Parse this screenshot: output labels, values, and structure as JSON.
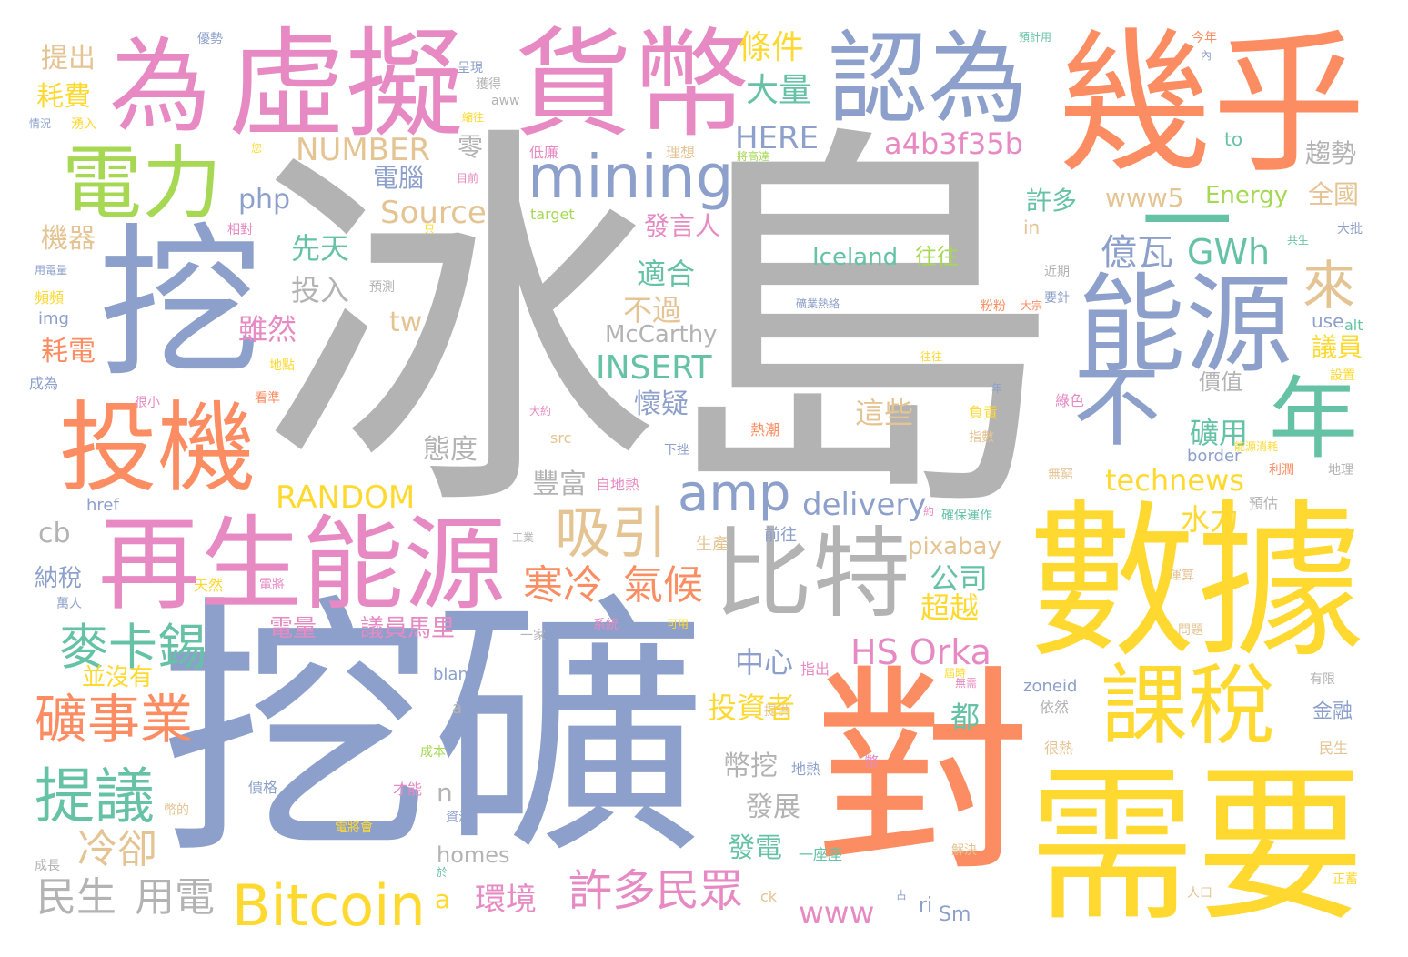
{
  "palette": {
    "gray": "#b3b3b3",
    "blue": "#8da0cb",
    "orange": "#fc8d62",
    "pink": "#e78ac3",
    "yellow": "#ffd92f",
    "green": "#66c2a5",
    "lime": "#a6d854",
    "tan": "#e5c494"
  },
  "words": [
    {
      "text": "冰島",
      "color": "gray"
    },
    {
      "text": "挖礦",
      "color": "blue"
    },
    {
      "text": "數據",
      "color": "yellow"
    },
    {
      "text": "需要",
      "color": "yellow"
    },
    {
      "text": "對",
      "color": "orange"
    },
    {
      "text": "幾乎",
      "color": "orange"
    },
    {
      "text": "挖",
      "color": "blue"
    },
    {
      "text": "貨幣",
      "color": "pink"
    },
    {
      "text": "虛擬",
      "color": "pink"
    },
    {
      "text": "為",
      "color": "pink"
    },
    {
      "text": "認為",
      "color": "blue"
    },
    {
      "text": "再生能源",
      "color": "pink"
    },
    {
      "text": "能源",
      "color": "blue"
    },
    {
      "text": "比特",
      "color": "gray"
    },
    {
      "text": "投機",
      "color": "orange"
    },
    {
      "text": "年",
      "color": "green"
    },
    {
      "text": "一",
      "color": "green"
    },
    {
      "text": "不",
      "color": "blue"
    },
    {
      "text": "課稅",
      "color": "yellow"
    },
    {
      "text": "電力",
      "color": "lime"
    },
    {
      "text": "mining",
      "color": "blue"
    },
    {
      "text": "Bitcoin",
      "color": "yellow"
    },
    {
      "text": "提議",
      "color": "green"
    },
    {
      "text": "麥卡錫",
      "color": "green"
    },
    {
      "text": "礦事業",
      "color": "orange"
    },
    {
      "text": "吸引",
      "color": "tan"
    },
    {
      "text": "amp",
      "color": "blue"
    },
    {
      "text": "來",
      "color": "tan"
    },
    {
      "text": "許多民眾",
      "color": "pink"
    },
    {
      "text": "寒冷",
      "color": "orange"
    },
    {
      "text": "氣候",
      "color": "orange"
    },
    {
      "text": "HS Orka",
      "color": "pink"
    },
    {
      "text": "億瓦",
      "color": "blue"
    },
    {
      "text": "GWh",
      "color": "green"
    },
    {
      "text": "a4b3f35b",
      "color": "pink"
    },
    {
      "text": "條件",
      "color": "yellow"
    },
    {
      "text": "大量",
      "color": "green"
    },
    {
      "text": "HERE",
      "color": "blue"
    },
    {
      "text": "NUMBER",
      "color": "tan"
    },
    {
      "text": "Source",
      "color": "tan"
    },
    {
      "text": "RANDOM",
      "color": "yellow"
    },
    {
      "text": "INSERT",
      "color": "green"
    },
    {
      "text": "delivery",
      "color": "blue"
    },
    {
      "text": "technews",
      "color": "yellow"
    },
    {
      "text": "冷卻",
      "color": "tan"
    },
    {
      "text": "民生",
      "color": "gray"
    },
    {
      "text": "用電",
      "color": "gray"
    },
    {
      "text": "環境",
      "color": "pink"
    },
    {
      "text": "www",
      "color": "pink"
    },
    {
      "text": "www5",
      "color": "tan"
    },
    {
      "text": "Energy",
      "color": "lime"
    },
    {
      "text": "Iceland",
      "color": "green"
    },
    {
      "text": "往往",
      "color": "lime"
    },
    {
      "text": "McCarthy",
      "color": "gray"
    },
    {
      "text": "先天",
      "color": "green"
    },
    {
      "text": "投入",
      "color": "gray"
    },
    {
      "text": "雖然",
      "color": "pink"
    },
    {
      "text": "不過",
      "color": "tan"
    },
    {
      "text": "適合",
      "color": "green"
    },
    {
      "text": "懷疑",
      "color": "blue"
    },
    {
      "text": "態度",
      "color": "gray"
    },
    {
      "text": "豐富",
      "color": "gray"
    },
    {
      "text": "這些",
      "color": "tan"
    },
    {
      "text": "礦用",
      "color": "green"
    },
    {
      "text": "水力",
      "color": "yellow"
    },
    {
      "text": "公司",
      "color": "green"
    },
    {
      "text": "超越",
      "color": "yellow"
    },
    {
      "text": "pixabay",
      "color": "tan"
    },
    {
      "text": "中心",
      "color": "blue"
    },
    {
      "text": "投資者",
      "color": "yellow"
    },
    {
      "text": "都",
      "color": "green"
    },
    {
      "text": "幣挖",
      "color": "gray"
    },
    {
      "text": "發展",
      "color": "gray"
    },
    {
      "text": "發電",
      "color": "green"
    },
    {
      "text": "電量",
      "color": "pink"
    },
    {
      "text": "議員馬里",
      "color": "pink"
    },
    {
      "text": "並沒有",
      "color": "yellow"
    },
    {
      "text": "納稅",
      "color": "blue"
    },
    {
      "text": "tw",
      "color": "tan"
    },
    {
      "text": "php",
      "color": "blue"
    },
    {
      "text": "電腦",
      "color": "blue"
    },
    {
      "text": "零",
      "color": "gray"
    },
    {
      "text": "許多",
      "color": "green"
    },
    {
      "text": "全國",
      "color": "tan"
    },
    {
      "text": "趨勢",
      "color": "gray"
    },
    {
      "text": "議員",
      "color": "yellow"
    },
    {
      "text": "價值",
      "color": "gray"
    },
    {
      "text": "提出",
      "color": "tan"
    },
    {
      "text": "耗費",
      "color": "yellow"
    },
    {
      "text": "機器",
      "color": "tan"
    },
    {
      "text": "耗電",
      "color": "orange"
    },
    {
      "text": "cb",
      "color": "gray"
    },
    {
      "text": "homes",
      "color": "gray"
    },
    {
      "text": "n",
      "color": "gray"
    },
    {
      "text": "a",
      "color": "yellow"
    },
    {
      "text": "to",
      "color": "green"
    },
    {
      "text": "use",
      "color": "blue"
    },
    {
      "text": "in",
      "color": "tan"
    },
    {
      "text": "href",
      "color": "blue"
    },
    {
      "text": "src",
      "color": "tan"
    },
    {
      "text": "target",
      "color": "lime"
    },
    {
      "text": "border",
      "color": "blue"
    },
    {
      "text": "blank",
      "color": "blue"
    },
    {
      "text": "zoneid",
      "color": "blue"
    },
    {
      "text": "img",
      "color": "blue"
    },
    {
      "text": "alt",
      "color": "green"
    },
    {
      "text": "aww",
      "color": "gray"
    },
    {
      "text": "ri",
      "color": "blue"
    },
    {
      "text": "Sm",
      "color": "blue"
    },
    {
      "text": "ck",
      "color": "tan"
    },
    {
      "text": "á",
      "color": "gray"
    },
    {
      "text": "發言人",
      "color": "pink"
    },
    {
      "text": "低廉",
      "color": "pink"
    },
    {
      "text": "理想",
      "color": "tan"
    },
    {
      "text": "生產",
      "color": "tan"
    },
    {
      "text": "前往",
      "color": "blue"
    },
    {
      "text": "指出",
      "color": "pink"
    },
    {
      "text": "熱潮",
      "color": "orange"
    },
    {
      "text": "負責",
      "color": "yellow"
    },
    {
      "text": "綠色",
      "color": "pink"
    },
    {
      "text": "預估",
      "color": "gray"
    },
    {
      "text": "運算",
      "color": "tan"
    },
    {
      "text": "依然",
      "color": "gray"
    },
    {
      "text": "很熱",
      "color": "tan"
    },
    {
      "text": "金融",
      "color": "blue"
    },
    {
      "text": "民生",
      "color": "tan"
    },
    {
      "text": "正蓄",
      "color": "yellow"
    },
    {
      "text": "人口",
      "color": "tan"
    },
    {
      "text": "解決",
      "color": "tan"
    },
    {
      "text": "一座座",
      "color": "green"
    },
    {
      "text": "資源",
      "color": "blue"
    },
    {
      "text": "才能",
      "color": "pink"
    },
    {
      "text": "地熱",
      "color": "blue"
    },
    {
      "text": "價格",
      "color": "blue"
    },
    {
      "text": "成本",
      "color": "lime"
    },
    {
      "text": "電將會",
      "color": "yellow"
    },
    {
      "text": "成長",
      "color": "gray"
    },
    {
      "text": "萬人",
      "color": "blue"
    },
    {
      "text": "天然",
      "color": "yellow"
    },
    {
      "text": "電將",
      "color": "pink"
    },
    {
      "text": "工業",
      "color": "gray"
    },
    {
      "text": "系統",
      "color": "pink"
    },
    {
      "text": "可用",
      "color": "yellow"
    },
    {
      "text": "一家",
      "color": "gray"
    },
    {
      "text": "自地熱",
      "color": "pink"
    },
    {
      "text": "無窮",
      "color": "tan"
    },
    {
      "text": "利潤",
      "color": "orange"
    },
    {
      "text": "地理",
      "color": "gray"
    },
    {
      "text": "能源消耗",
      "color": "yellow"
    },
    {
      "text": "指數",
      "color": "tan"
    },
    {
      "text": "確保運作",
      "color": "green"
    },
    {
      "text": "近期",
      "color": "gray"
    },
    {
      "text": "要針",
      "color": "blue"
    },
    {
      "text": "大批",
      "color": "blue"
    },
    {
      "text": "粉粉",
      "color": "orange"
    },
    {
      "text": "大宗",
      "color": "orange"
    },
    {
      "text": "設置",
      "color": "yellow"
    },
    {
      "text": "預測",
      "color": "gray"
    },
    {
      "text": "地點",
      "color": "yellow"
    },
    {
      "text": "看準",
      "color": "orange"
    },
    {
      "text": "成為",
      "color": "blue"
    },
    {
      "text": "頻頻",
      "color": "yellow"
    },
    {
      "text": "相對",
      "color": "pink"
    },
    {
      "text": "優勢",
      "color": "blue"
    },
    {
      "text": "呈現",
      "color": "blue"
    },
    {
      "text": "獲得",
      "color": "gray"
    },
    {
      "text": "縮往",
      "color": "yellow"
    },
    {
      "text": "湧入",
      "color": "yellow"
    },
    {
      "text": "情況",
      "color": "blue"
    },
    {
      "text": "今年",
      "color": "orange"
    },
    {
      "text": "預計用",
      "color": "green"
    },
    {
      "text": "有限",
      "color": "gray"
    },
    {
      "text": "問題",
      "color": "tan"
    },
    {
      "text": "幣的",
      "color": "tan"
    },
    {
      "text": "下挫",
      "color": "blue"
    },
    {
      "text": "很小",
      "color": "pink"
    },
    {
      "text": "將高達",
      "color": "lime"
    },
    {
      "text": "目前",
      "color": "pink"
    },
    {
      "text": "您",
      "color": "yellow"
    },
    {
      "text": "只",
      "color": "yellow"
    },
    {
      "text": "用電量",
      "color": "blue"
    },
    {
      "text": "礦業熱絡",
      "color": "blue"
    },
    {
      "text": "一年",
      "color": "blue"
    },
    {
      "text": "往往",
      "color": "yellow"
    },
    {
      "text": "大約",
      "color": "pink"
    },
    {
      "text": "提供",
      "color": "tan"
    },
    {
      "text": "無需",
      "color": "pink"
    },
    {
      "text": "幣",
      "color": "pink"
    },
    {
      "text": "於",
      "color": "green"
    },
    {
      "text": "占",
      "color": "blue"
    },
    {
      "text": "內",
      "color": "blue"
    },
    {
      "text": "共生",
      "color": "green"
    },
    {
      "text": "約",
      "color": "pink"
    },
    {
      "text": "屆時",
      "color": "yellow"
    }
  ]
}
